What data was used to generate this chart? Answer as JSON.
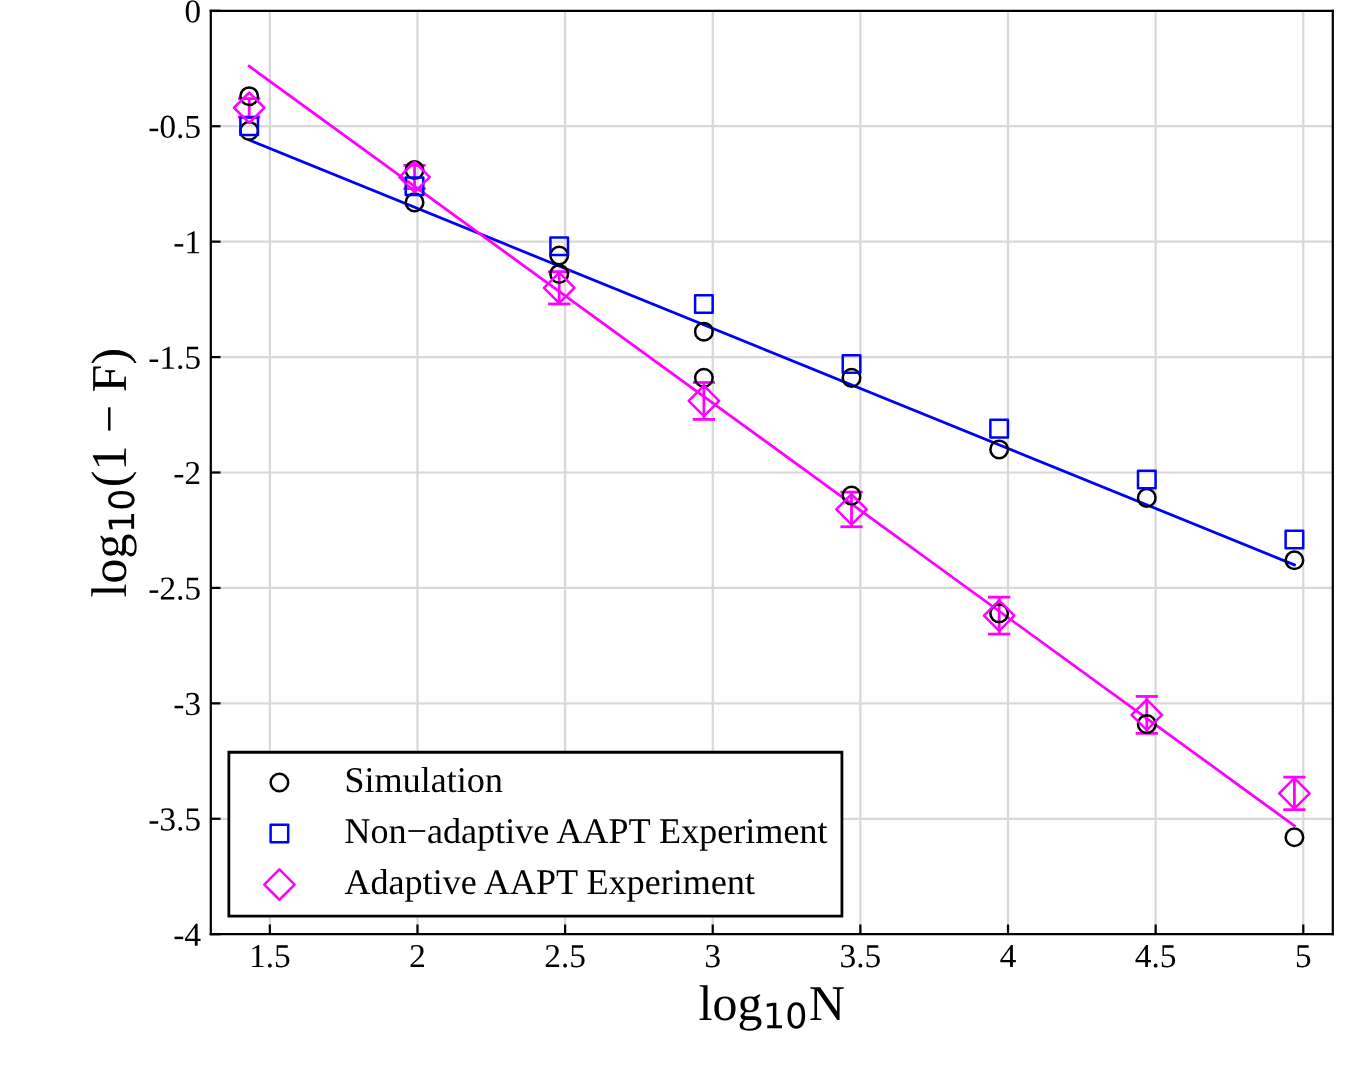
{
  "chart_data": {
    "type": "scatter",
    "xlabel": "log$_{10}$N",
    "ylabel": "log$_{10}$(1 − F)",
    "xlim": [
      1.3,
      5.1
    ],
    "ylim": [
      -4,
      0
    ],
    "xticks": [
      1.5,
      2,
      2.5,
      3,
      3.5,
      4,
      4.5,
      5
    ],
    "yticks": [
      -4,
      -3.5,
      -3,
      -2.5,
      -2,
      -1.5,
      -1,
      -0.5,
      0
    ],
    "grid": true,
    "legend": "bottom left",
    "series": [
      {
        "type": "line",
        "marker": "none",
        "line_style": "solid",
        "color": "#0000ff",
        "x": [
          1.43,
          4.97
        ],
        "values": [
          -0.56,
          -2.4
        ]
      },
      {
        "type": "line",
        "marker": "none",
        "line_style": "solid",
        "color": "#ff00ff",
        "x": [
          1.43,
          4.97
        ],
        "values": [
          -0.24,
          -3.53
        ]
      },
      {
        "name": "Simulation",
        "marker": "circle",
        "color": "#000000",
        "x": [
          1.43,
          1.99,
          2.48,
          2.97,
          3.47,
          3.97,
          4.47,
          4.97
        ],
        "values": [
          -0.52,
          -0.83,
          -1.14,
          -1.39,
          -1.59,
          -1.9,
          -2.11,
          -2.38
        ]
      },
      {
        "marker": "circle",
        "color": "#000000",
        "x": [
          1.43,
          1.99,
          2.48,
          2.97,
          3.47,
          3.97,
          4.47,
          4.97
        ],
        "values": [
          -0.37,
          -0.69,
          -1.06,
          -1.59,
          -2.1,
          -2.61,
          -3.09,
          -3.58
        ]
      },
      {
        "name": "Non−adaptive AAPT Experiment",
        "marker": "square",
        "color": "#0000ff",
        "x": [
          1.43,
          1.99,
          2.48,
          2.97,
          3.47,
          3.97,
          4.47,
          4.97
        ],
        "values": [
          -0.5,
          -0.76,
          -1.02,
          -1.27,
          -1.53,
          -1.81,
          -2.03,
          -2.29
        ]
      },
      {
        "name": "Adaptive AAPT Experiment",
        "marker": "diamond",
        "color": "#ff00ff",
        "x": [
          1.43,
          1.99,
          2.48,
          2.97,
          3.47,
          3.97,
          4.47,
          4.97
        ],
        "values": [
          -0.42,
          -0.72,
          -1.2,
          -1.69,
          -2.16,
          -2.62,
          -3.05,
          -3.39
        ],
        "errors": [
          0.04,
          0.05,
          0.07,
          0.08,
          0.075,
          0.08,
          0.08,
          0.07
        ]
      }
    ]
  }
}
